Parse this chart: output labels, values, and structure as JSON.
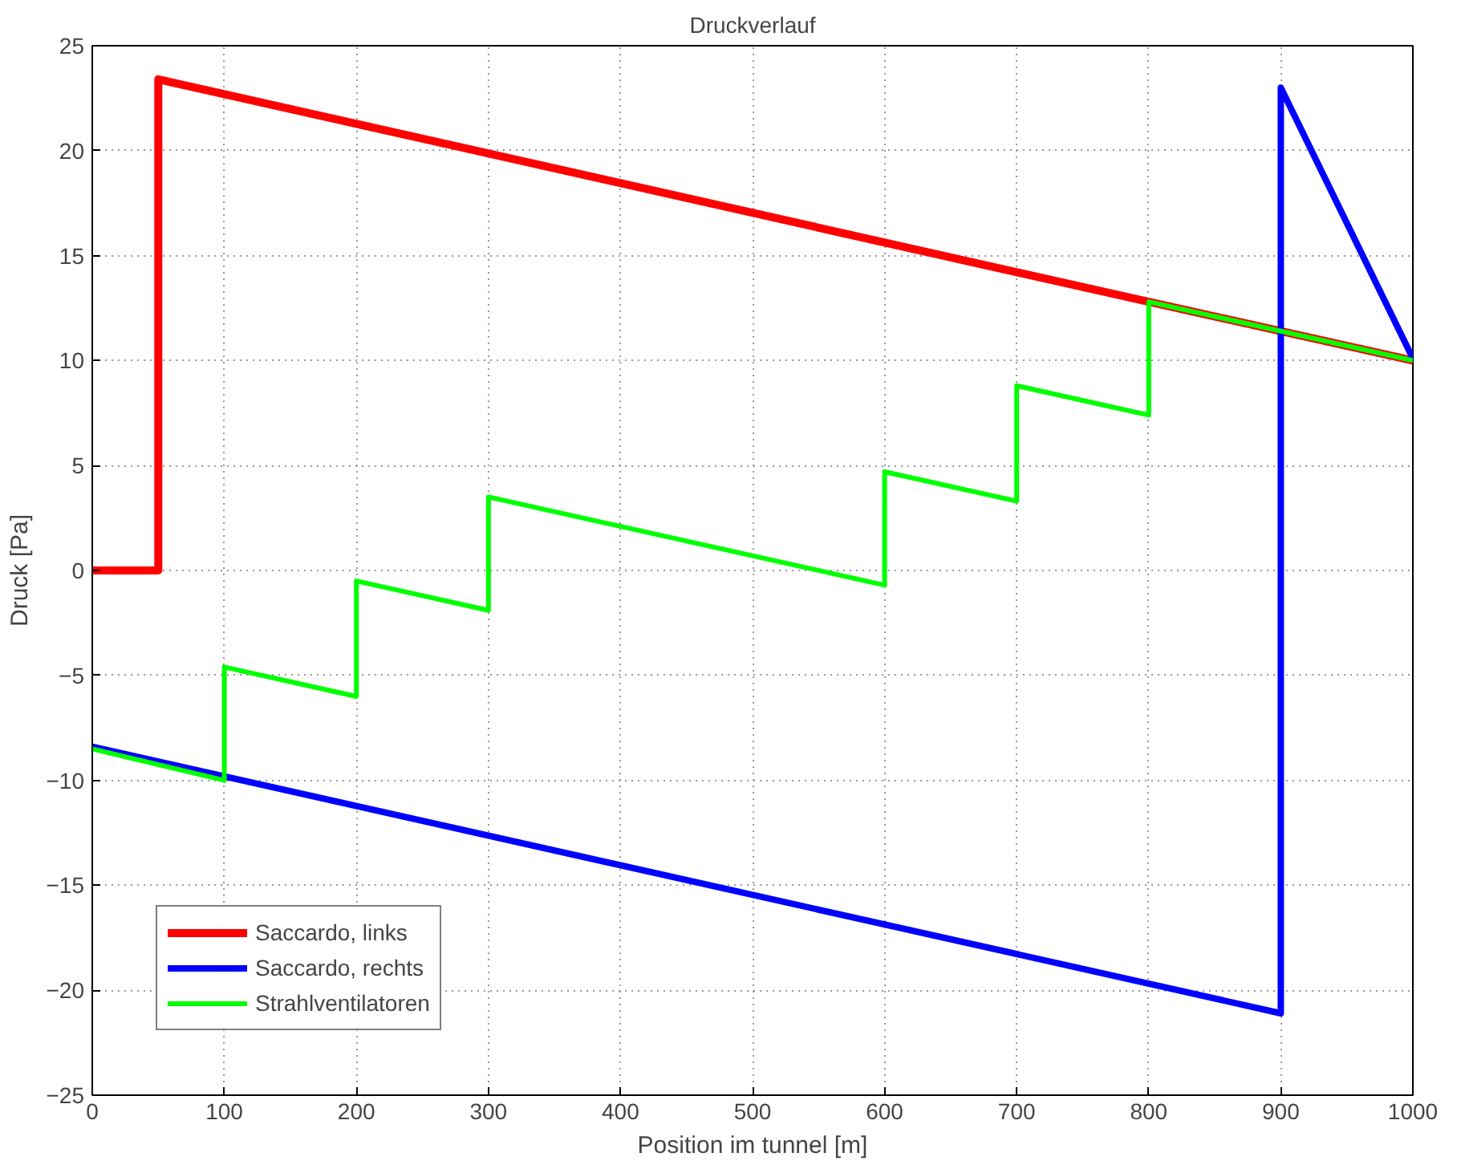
{
  "chart_data": {
    "type": "line",
    "title": "Druckverlauf",
    "xlabel": "Position im tunnel [m]",
    "ylabel": "Druck [Pa]",
    "xlim": [
      0,
      1000
    ],
    "ylim": [
      -25,
      25
    ],
    "xticks": [
      0,
      100,
      200,
      300,
      400,
      500,
      600,
      700,
      800,
      900,
      1000
    ],
    "yticks": [
      -25,
      -20,
      -15,
      -10,
      -5,
      0,
      5,
      10,
      15,
      20,
      25
    ],
    "grid": true,
    "legend": "bottom left",
    "line_style": "solid",
    "marker": "none",
    "series": [
      {
        "name": "Saccardo, links",
        "color": "#ff0000",
        "x": [
          0,
          50,
          50,
          800,
          1000
        ],
        "values": [
          0,
          0,
          23.4,
          12.8,
          10
        ]
      },
      {
        "name": "Saccardo, rechts",
        "color": "#0000ff",
        "x": [
          0,
          900,
          900,
          1000
        ],
        "values": [
          -8.4,
          -21.1,
          23,
          10.1
        ]
      },
      {
        "name": "Strahlventilatoren",
        "color": "#00ff00",
        "x": [
          0,
          100,
          100,
          200,
          200,
          300,
          300,
          600,
          600,
          700,
          700,
          800,
          800,
          1000
        ],
        "values": [
          -8.5,
          -10,
          -4.6,
          -6,
          -0.5,
          -1.9,
          3.5,
          -0.7,
          4.7,
          3.3,
          8.8,
          7.4,
          12.8,
          10
        ]
      }
    ]
  }
}
